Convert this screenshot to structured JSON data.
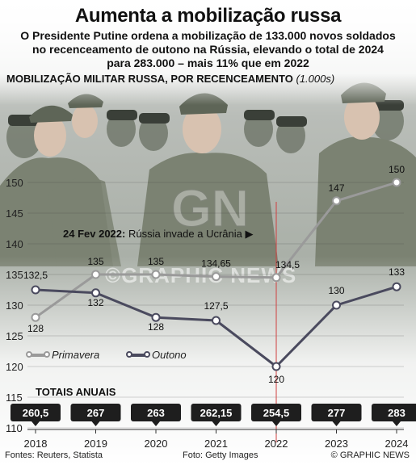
{
  "header": {
    "title": "Aumenta a mobilização russa",
    "subtitle": "O Presidente Putine ordena a mobilização de 133.000 novos soldados no recenceamento de outono na Rússia, elevando o total de 2024 para 283.000 – mais 11% que em 2022"
  },
  "chart_heading": {
    "main": "MOBILIZAÇÃO MILITAR RUSSA, POR RECENCEAMENTO",
    "unit": "(1.000s)"
  },
  "event_note": {
    "date": "24 Fev 2022:",
    "text": "Rússia invade a Ucrânia ▶"
  },
  "watermark_text": "©GRAPHIC NEWS",
  "chart_data": {
    "type": "line",
    "x": [
      "2018",
      "2019",
      "2020",
      "2021",
      "2022",
      "2023",
      "2024"
    ],
    "series": [
      {
        "name": "Primavera",
        "values": [
          128,
          135,
          135,
          134.65,
          134.5,
          147,
          150
        ],
        "labels": [
          "128",
          "135",
          "135",
          "134,65",
          "134,5",
          "147",
          "150"
        ],
        "color": "#9a9a9a"
      },
      {
        "name": "Outono",
        "values": [
          132.5,
          132,
          128,
          127.5,
          120,
          130,
          133
        ],
        "labels": [
          "132,5",
          "132",
          "128",
          "127,5",
          "120",
          "130",
          "133"
        ],
        "color": "#4a4a5e"
      }
    ],
    "yticks": [
      110,
      115,
      120,
      125,
      130,
      135,
      140,
      145,
      150
    ],
    "ylim": [
      110,
      152
    ],
    "event_x": "2022",
    "annual_totals_title": "TOTAIS ANUAIS",
    "annual_totals": [
      "260,5",
      "267",
      "263",
      "262,15",
      "254,5",
      "277",
      "283"
    ]
  },
  "legend": {
    "spring": "Primavera",
    "autumn": "Outono"
  },
  "footer": {
    "sources": "Fontes: Reuters, Statista",
    "photo": "Foto: Getty Images",
    "brand": "© GRAPHIC NEWS"
  },
  "colors": {
    "accent_line": "#d04040",
    "badge": "#1e1e1e"
  }
}
